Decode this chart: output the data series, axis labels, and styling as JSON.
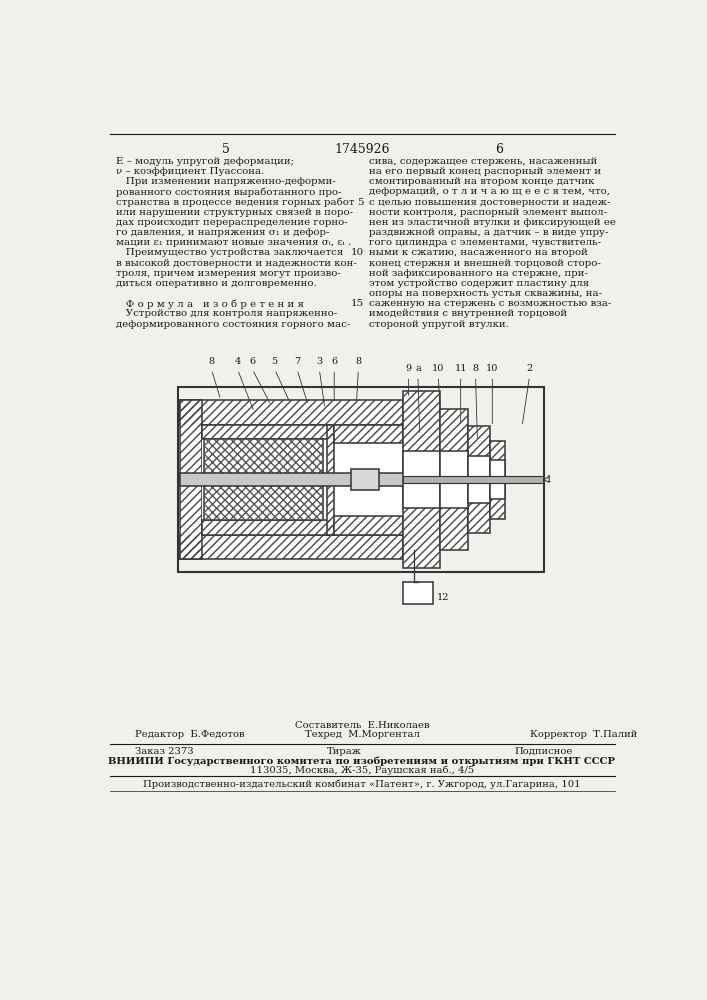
{
  "page_number_left": "5",
  "patent_number": "1745926",
  "page_number_right": "6",
  "background_color": "#f2f0eb",
  "text_color": "#1a1a1a",
  "left_column_lines": [
    "E – модуль упругой деформации;",
    "ν – коэффициент Пуассона.",
    "   При изменении напряженно-деформи-",
    "рованного состояния выработанного про-",
    "странства в процессе ведения горных работ",
    "или нарушении структурных связей в поро-",
    "дах происходит перераспределение горно-",
    "го давления, и напряжения σ₁ и дефор-",
    "мации ε₁ принимают новые значения σᵢ, εᵢ .",
    "   Преимущество устройства заключается",
    "в высокой достоверности и надежности кон-",
    "троля, причем измерения могут произво-",
    "диться оперативно и долговременно.",
    "",
    "   Ф о р м у л а   и з о б р е т е н и я",
    "   Устройство для контроля напряженно-",
    "деформированного состояния горного мас-"
  ],
  "right_column_lines": [
    "сива, содержащее стержень, насаженный",
    "на его первый конец распорный элемент и",
    "смонтированный на втором конце датчик",
    "деформаций, о т л и ч а ю щ е е с я тем, что,",
    "с целью повышения достоверности и надеж-",
    "ности контроля, распорный элемент выпол-",
    "нен из эластичной втулки и фиксирующей ее",
    "раздвижной оправы, а датчик – в виде упру-",
    "гого цилиндра с элементами, чувствитель-",
    "ными к сжатию, насаженного на второй",
    "конец стержня и внешней торцовой сторо-",
    "ной зафиксированного на стержне, при-",
    "этом устройство содержит пластину для",
    "опоры на поверхность устья скважины, на-",
    "саженную на стержень с возможностью вза-",
    "имодействия с внутренней торцовой",
    "стороной упругой втулки."
  ],
  "footer_editor": "Редактор  Б.Федотов",
  "footer_composer": "Составитель  Е.Николаев",
  "footer_tech": "Техред  М.Моргентал",
  "footer_corrector": "Корректор  Т.Палий",
  "footer_order": "Заказ 2373",
  "footer_tiraj": "Тираж",
  "footer_podpisnoe": "Подписное",
  "footer_vniippi": "ВНИИПИ Государственного комитета по изобретениям и открытиям при ГКНТ СССР",
  "footer_address": "113035, Москва, Ж-35, Раушская наб., 4/5",
  "footer_publisher": "Производственно-издательский комбинат «Патент», г. Ужгород, ул.Гагарина, 101"
}
